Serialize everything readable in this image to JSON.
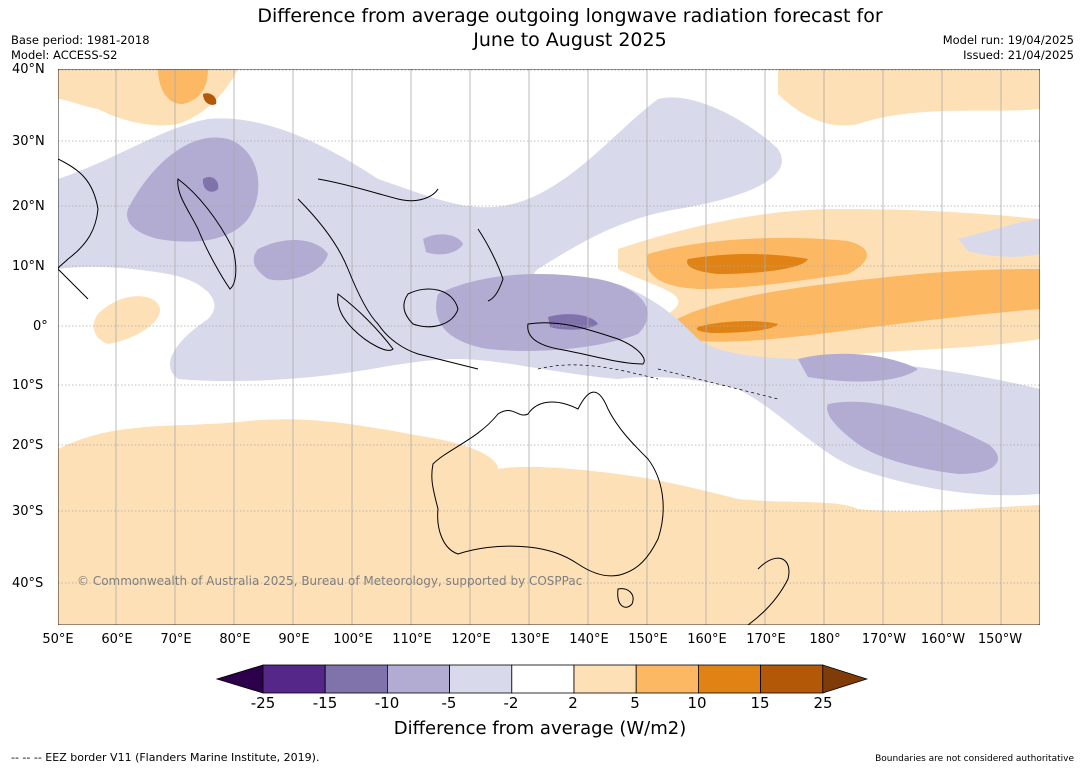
{
  "title": {
    "line1": "Difference from average outgoing longwave radiation forecast for",
    "line2": "June to August 2025"
  },
  "meta": {
    "base_period": "Base period: 1981-2018",
    "model": "Model: ACCESS-S2",
    "model_run": "Model run: 19/04/2025",
    "issued": "Issued: 21/04/2025"
  },
  "map": {
    "latitudes": [
      "40°N",
      "30°N",
      "20°N",
      "10°N",
      "0°",
      "10°S",
      "20°S",
      "30°S",
      "40°S"
    ],
    "longitudes": [
      "50°E",
      "60°E",
      "70°E",
      "80°E",
      "90°E",
      "100°E",
      "110°E",
      "120°E",
      "130°E",
      "140°E",
      "150°E",
      "160°E",
      "170°E",
      "180°",
      "170°W",
      "160°W",
      "150°W"
    ],
    "copyright": "© Commonwealth of Australia 2025, Bureau of Meteorology, supported by COSPPac",
    "gridlines": true
  },
  "legend": {
    "title": "Difference from average (W/m2)",
    "ticks": [
      "-25",
      "-15",
      "-10",
      "-5",
      "-2",
      "2",
      "5",
      "10",
      "15",
      "25"
    ],
    "colors": [
      "#2d004b",
      "#542788",
      "#8073ac",
      "#b2abd2",
      "#d8daeb",
      "#ffffff",
      "#fee0b6",
      "#fdb863",
      "#e08214",
      "#b35806",
      "#7f3b08"
    ]
  },
  "footer": {
    "eez": "--  --  -- EEZ border V11 (Flanders Marine Institute, 2019).",
    "boundaries": "Boundaries are not considered authoritative"
  }
}
